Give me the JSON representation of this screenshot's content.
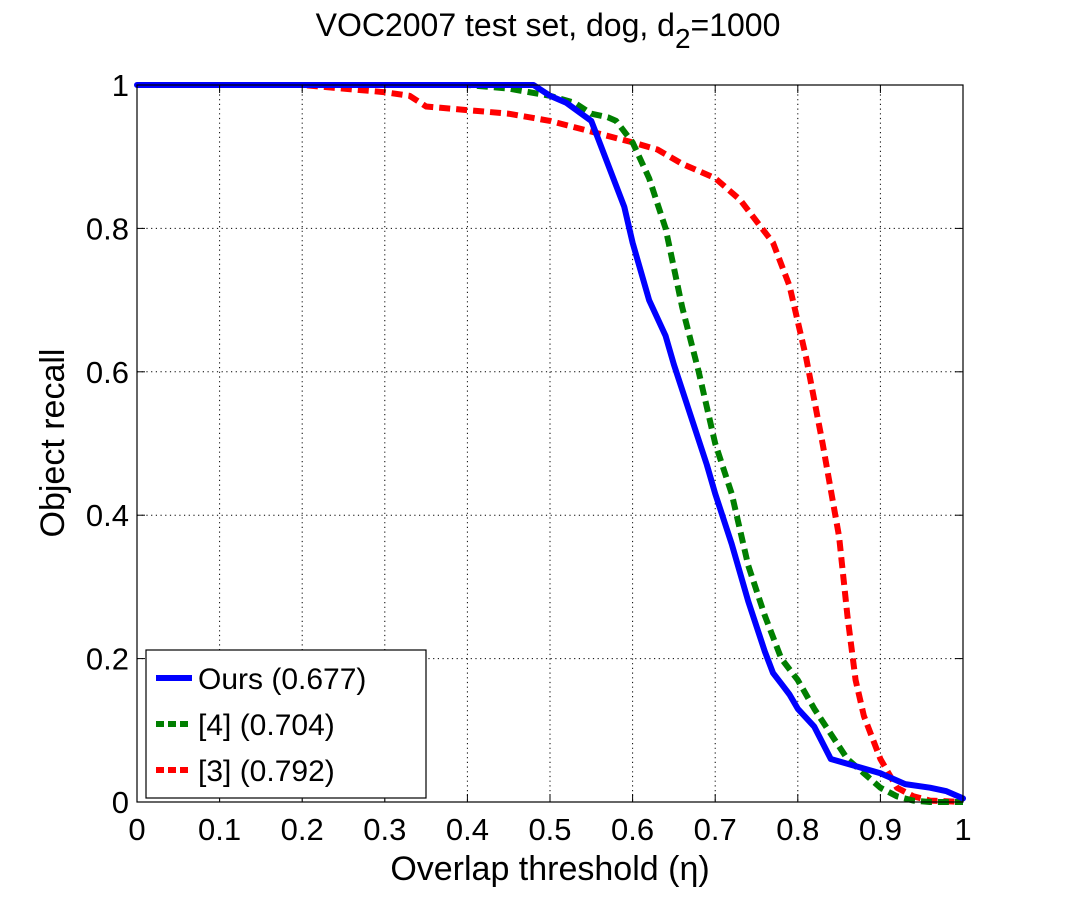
{
  "chart_data": {
    "type": "line",
    "title": "VOC2007 test set, dog, d",
    "title_subscript": "2",
    "title_suffix": "=1000",
    "xlabel": "Overlap threshold (η)",
    "ylabel": "Object recall",
    "xlim": [
      0,
      1
    ],
    "ylim": [
      0,
      1
    ],
    "x_ticks": [
      "0",
      "0.1",
      "0.2",
      "0.3",
      "0.4",
      "0.5",
      "0.6",
      "0.7",
      "0.8",
      "0.9",
      "1"
    ],
    "y_ticks": [
      "0",
      "0.2",
      "0.4",
      "0.6",
      "0.8",
      "1"
    ],
    "grid": true,
    "legend_position": "bottom-left",
    "series": [
      {
        "name": "Ours (0.677)",
        "color": "#0000ff",
        "style": "solid",
        "x": [
          0,
          0.3,
          0.48,
          0.5,
          0.52,
          0.55,
          0.57,
          0.59,
          0.6,
          0.62,
          0.64,
          0.65,
          0.67,
          0.69,
          0.7,
          0.72,
          0.74,
          0.76,
          0.77,
          0.78,
          0.79,
          0.8,
          0.82,
          0.84,
          0.87,
          0.9,
          0.93,
          0.96,
          0.98,
          1.0
        ],
        "y": [
          1.0,
          1.0,
          1.0,
          0.985,
          0.975,
          0.95,
          0.89,
          0.83,
          0.78,
          0.7,
          0.65,
          0.61,
          0.54,
          0.47,
          0.43,
          0.36,
          0.28,
          0.21,
          0.18,
          0.165,
          0.15,
          0.13,
          0.105,
          0.06,
          0.05,
          0.04,
          0.025,
          0.02,
          0.015,
          0.005
        ]
      },
      {
        "name": "[4] (0.704)",
        "color": "#007f00",
        "style": "dashed",
        "x": [
          0,
          0.4,
          0.45,
          0.5,
          0.53,
          0.55,
          0.57,
          0.58,
          0.6,
          0.62,
          0.64,
          0.66,
          0.68,
          0.7,
          0.72,
          0.74,
          0.76,
          0.78,
          0.8,
          0.82,
          0.84,
          0.86,
          0.88,
          0.9,
          0.92,
          0.94,
          0.96,
          1.0
        ],
        "y": [
          1.0,
          1.0,
          0.995,
          0.985,
          0.975,
          0.96,
          0.955,
          0.95,
          0.92,
          0.87,
          0.8,
          0.69,
          0.6,
          0.5,
          0.43,
          0.33,
          0.26,
          0.2,
          0.17,
          0.13,
          0.095,
          0.06,
          0.04,
          0.02,
          0.008,
          0.002,
          0.0,
          0.0
        ]
      },
      {
        "name": "[3] (0.792)",
        "color": "#ff0000",
        "style": "dashed",
        "x": [
          0,
          0.2,
          0.25,
          0.3,
          0.33,
          0.35,
          0.4,
          0.45,
          0.5,
          0.55,
          0.6,
          0.63,
          0.66,
          0.7,
          0.73,
          0.75,
          0.77,
          0.79,
          0.81,
          0.83,
          0.85,
          0.86,
          0.87,
          0.88,
          0.9,
          0.92,
          0.94,
          0.96,
          1.0
        ],
        "y": [
          1.0,
          1.0,
          0.995,
          0.99,
          0.985,
          0.97,
          0.965,
          0.96,
          0.95,
          0.935,
          0.92,
          0.91,
          0.89,
          0.87,
          0.84,
          0.81,
          0.78,
          0.72,
          0.62,
          0.5,
          0.37,
          0.26,
          0.17,
          0.12,
          0.06,
          0.02,
          0.008,
          0.002,
          0.0
        ]
      }
    ]
  }
}
